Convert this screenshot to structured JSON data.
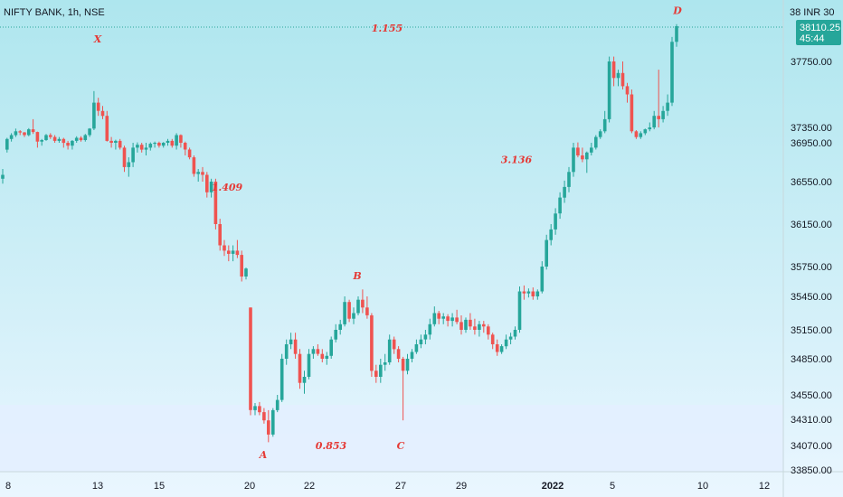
{
  "header": {
    "symbol": "NIFTY BANK, 1h, NSE"
  },
  "price_axis": {
    "currency_label": "38 INR 30",
    "last_price": "38110.25",
    "countdown": "45:44"
  },
  "colors": {
    "up": "#26a69a",
    "down": "#ef5350",
    "label": "#e53935",
    "tag": "#26a69a",
    "bg_top": "#aee6ee",
    "bg_bottom": "#eaf6ff",
    "zone": "#e3efff"
  },
  "chart_data": {
    "type": "candlestick",
    "title": "NIFTY BANK, 1h, NSE",
    "x_tick_labels": [
      "8",
      "13",
      "15",
      "20",
      "22",
      "27",
      "29",
      "2022",
      "5",
      "10",
      "12"
    ],
    "y_tick_labels": [
      "37750.00",
      "37350.00",
      "36950.00",
      "36550.00",
      "36150.00",
      "35750.00",
      "35450.00",
      "35150.00",
      "34850.00",
      "34550.00",
      "34310.00",
      "34070.00",
      "33850.00"
    ],
    "ylim": [
      33850,
      38300
    ],
    "last_price": 38110.25,
    "wave_labels": [
      {
        "text": "X",
        "price": 37980
      },
      {
        "text": "A",
        "price": 33990
      },
      {
        "text": "B",
        "price": 35660
      },
      {
        "text": "C",
        "price": 34070
      },
      {
        "text": "D",
        "price": 38270
      }
    ],
    "ratio_labels": [
      {
        "text": "1.155",
        "price": 38090
      },
      {
        "text": "1.409",
        "price": 36500
      },
      {
        "text": "3.136",
        "price": 36780
      },
      {
        "text": "0.853",
        "price": 34070
      }
    ],
    "candles": [
      [
        36580,
        36680,
        36530,
        36620
      ],
      [
        36880,
        37080,
        36850,
        37050
      ],
      [
        37050,
        37200,
        36980,
        37150
      ],
      [
        37150,
        37320,
        37100,
        37250
      ],
      [
        37250,
        37280,
        37150,
        37220
      ],
      [
        37220,
        37230,
        37100,
        37150
      ],
      [
        37150,
        37330,
        37120,
        37300
      ],
      [
        37300,
        37400,
        37180,
        37230
      ],
      [
        37230,
        37240,
        36900,
        36980
      ],
      [
        36980,
        37050,
        36920,
        37020
      ],
      [
        37020,
        37180,
        37000,
        37150
      ],
      [
        37150,
        37200,
        37050,
        37100
      ],
      [
        37100,
        37150,
        36950,
        37000
      ],
      [
        37000,
        37100,
        36950,
        37050
      ],
      [
        37050,
        37080,
        36900,
        36950
      ],
      [
        36950,
        37000,
        36880,
        36920
      ],
      [
        36920,
        37020,
        36880,
        37000
      ],
      [
        37000,
        37120,
        36950,
        37080
      ],
      [
        37080,
        37120,
        36980,
        37020
      ],
      [
        37020,
        37180,
        36980,
        37150
      ],
      [
        37150,
        37330,
        37100,
        37320
      ],
      [
        37320,
        37570,
        37280,
        37500
      ],
      [
        37500,
        37530,
        37420,
        37450
      ],
      [
        37450,
        37480,
        37400,
        37420
      ],
      [
        37420,
        37450,
        36980,
        37000
      ],
      [
        37000,
        37100,
        36900,
        36950
      ],
      [
        36950,
        37030,
        36880,
        37000
      ],
      [
        37000,
        37050,
        36880,
        36900
      ],
      [
        36900,
        36920,
        36650,
        36700
      ],
      [
        36700,
        36800,
        36600,
        36750
      ],
      [
        36750,
        36950,
        36700,
        36900
      ],
      [
        36900,
        36960,
        36850,
        36930
      ],
      [
        36930,
        36950,
        36850,
        36880
      ],
      [
        36880,
        36950,
        36820,
        36900
      ],
      [
        36900,
        36960,
        36870,
        36940
      ],
      [
        36940,
        36980,
        36900,
        36950
      ],
      [
        36950,
        36980,
        36900,
        36920
      ],
      [
        36920,
        36970,
        36900,
        36950
      ],
      [
        36950,
        37050,
        36920,
        37000
      ],
      [
        37000,
        37050,
        36900,
        36920
      ],
      [
        36920,
        37200,
        36880,
        37150
      ],
      [
        37150,
        37170,
        36900,
        36950
      ],
      [
        36950,
        36980,
        36820,
        36880
      ],
      [
        36880,
        36900,
        36780,
        36800
      ],
      [
        36800,
        36820,
        36600,
        36630
      ],
      [
        36630,
        36680,
        36550,
        36650
      ],
      [
        36650,
        36700,
        36550,
        36620
      ],
      [
        36620,
        36650,
        36400,
        36450
      ],
      [
        36450,
        36580,
        36400,
        36550
      ],
      [
        36550,
        36580,
        36100,
        36150
      ],
      [
        36150,
        36200,
        35900,
        35950
      ],
      [
        35950,
        36000,
        35850,
        35900
      ],
      [
        35900,
        35950,
        35800,
        35870
      ],
      [
        35870,
        35950,
        35800,
        35900
      ],
      [
        35900,
        36000,
        35830,
        35860
      ],
      [
        35860,
        35900,
        35600,
        35650
      ],
      [
        35650,
        35740,
        35620,
        35730
      ],
      [
        35350,
        35350,
        34350,
        34400
      ],
      [
        34400,
        34470,
        34350,
        34440
      ],
      [
        34440,
        34480,
        34350,
        34380
      ],
      [
        34380,
        34420,
        34270,
        34300
      ],
      [
        34300,
        34400,
        34100,
        34170
      ],
      [
        34170,
        34420,
        34150,
        34400
      ],
      [
        34400,
        34550,
        34380,
        34500
      ],
      [
        34500,
        34900,
        34480,
        34850
      ],
      [
        34850,
        35050,
        34800,
        35000
      ],
      [
        35000,
        35120,
        34950,
        35050
      ],
      [
        35050,
        35120,
        34850,
        34900
      ],
      [
        34900,
        34950,
        34600,
        34650
      ],
      [
        34650,
        34750,
        34560,
        34700
      ],
      [
        34700,
        34950,
        34680,
        34900
      ],
      [
        34900,
        34980,
        34850,
        34950
      ],
      [
        34950,
        35000,
        34880,
        34900
      ],
      [
        34900,
        34950,
        34820,
        34850
      ],
      [
        34850,
        34920,
        34800,
        34880
      ],
      [
        34880,
        35080,
        34850,
        35050
      ],
      [
        35050,
        35200,
        35020,
        35150
      ],
      [
        35150,
        35240,
        35100,
        35200
      ],
      [
        35200,
        35450,
        35180,
        35400
      ],
      [
        35400,
        35420,
        35220,
        35250
      ],
      [
        35250,
        35350,
        35200,
        35300
      ],
      [
        35300,
        35450,
        35280,
        35420
      ],
      [
        35420,
        35520,
        35300,
        35350
      ],
      [
        35350,
        35450,
        35250,
        35280
      ],
      [
        35280,
        35300,
        34700,
        34750
      ],
      [
        34750,
        34800,
        34650,
        34700
      ],
      [
        34700,
        34850,
        34650,
        34800
      ],
      [
        34800,
        34900,
        34750,
        34820
      ],
      [
        34820,
        35100,
        34800,
        35050
      ],
      [
        35050,
        35080,
        34900,
        34950
      ],
      [
        34950,
        34980,
        34820,
        34850
      ],
      [
        34850,
        34870,
        34300,
        34750
      ],
      [
        34750,
        34900,
        34720,
        34850
      ],
      [
        34850,
        34950,
        34820,
        34920
      ],
      [
        34920,
        35050,
        34900,
        35000
      ],
      [
        35000,
        35100,
        34960,
        35050
      ],
      [
        35050,
        35150,
        35000,
        35100
      ],
      [
        35100,
        35250,
        35050,
        35200
      ],
      [
        35200,
        35360,
        35180,
        35300
      ],
      [
        35300,
        35320,
        35200,
        35250
      ],
      [
        35250,
        35300,
        35200,
        35270
      ],
      [
        35270,
        35290,
        35180,
        35230
      ],
      [
        35230,
        35300,
        35180,
        35260
      ],
      [
        35260,
        35330,
        35200,
        35220
      ],
      [
        35220,
        35280,
        35100,
        35150
      ],
      [
        35150,
        35260,
        35120,
        35240
      ],
      [
        35240,
        35300,
        35150,
        35180
      ],
      [
        35180,
        35250,
        35100,
        35150
      ],
      [
        35150,
        35230,
        35080,
        35200
      ],
      [
        35200,
        35230,
        35120,
        35180
      ],
      [
        35180,
        35200,
        35050,
        35100
      ],
      [
        35100,
        35120,
        34950,
        35000
      ],
      [
        35000,
        35050,
        34880,
        34920
      ],
      [
        34920,
        35000,
        34900,
        34980
      ],
      [
        34980,
        35100,
        34950,
        35050
      ],
      [
        35050,
        35120,
        35000,
        35080
      ],
      [
        35080,
        35180,
        35050,
        35150
      ],
      [
        35150,
        35550,
        35120,
        35500
      ],
      [
        35500,
        35560,
        35420,
        35480
      ],
      [
        35480,
        35530,
        35440,
        35500
      ],
      [
        35500,
        35540,
        35420,
        35450
      ],
      [
        35450,
        35520,
        35420,
        35500
      ],
      [
        35500,
        35800,
        35480,
        35750
      ],
      [
        35750,
        36050,
        35720,
        36000
      ],
      [
        36000,
        36150,
        35950,
        36100
      ],
      [
        36100,
        36300,
        36050,
        36250
      ],
      [
        36250,
        36450,
        36200,
        36400
      ],
      [
        36400,
        36560,
        36350,
        36500
      ],
      [
        36500,
        36700,
        36450,
        36650
      ],
      [
        36650,
        36950,
        36600,
        36900
      ],
      [
        36900,
        36960,
        36800,
        36820
      ],
      [
        36820,
        36900,
        36750,
        36780
      ],
      [
        36780,
        36860,
        36640,
        36850
      ],
      [
        36850,
        36950,
        36820,
        36900
      ],
      [
        36900,
        37150,
        36880,
        37100
      ],
      [
        37100,
        37300,
        37050,
        37250
      ],
      [
        37250,
        37450,
        37200,
        37400
      ],
      [
        37400,
        37800,
        37380,
        37750
      ],
      [
        37750,
        37800,
        37600,
        37650
      ],
      [
        37650,
        37700,
        37600,
        37680
      ],
      [
        37680,
        37750,
        37580,
        37600
      ],
      [
        37600,
        37620,
        37500,
        37550
      ],
      [
        37550,
        37580,
        37200,
        37250
      ],
      [
        37250,
        37280,
        37050,
        37100
      ],
      [
        37100,
        37250,
        37050,
        37200
      ],
      [
        37200,
        37320,
        37150,
        37300
      ],
      [
        37300,
        37380,
        37250,
        37350
      ],
      [
        37350,
        37450,
        37300,
        37420
      ],
      [
        37420,
        37700,
        37350,
        37400
      ],
      [
        37400,
        37480,
        37380,
        37450
      ],
      [
        37450,
        37550,
        37420,
        37500
      ],
      [
        37500,
        38000,
        37480,
        37950
      ],
      [
        37950,
        38130,
        37900,
        38110
      ]
    ]
  }
}
